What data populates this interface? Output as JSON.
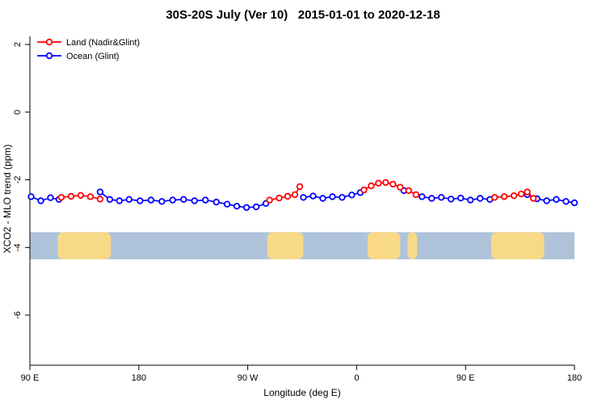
{
  "chart_data": {
    "type": "line",
    "title": "30S-20S July (Ver 10)   2015-01-01 to 2020-12-18",
    "xlabel": "Longitude (deg E)",
    "ylabel": "XCO2 - MLO trend (ppm)",
    "x_range": [
      90,
      540
    ],
    "y_visible_ticks": [
      2,
      0,
      -2,
      -4,
      -6
    ],
    "x_ticks": [
      {
        "lon": 90,
        "label": "90 E"
      },
      {
        "lon": 180,
        "label": "180"
      },
      {
        "lon": 270,
        "label": "90 W"
      },
      {
        "lon": 360,
        "label": "0"
      },
      {
        "lon": 450,
        "label": "90 E"
      },
      {
        "lon": 540,
        "label": "180"
      }
    ],
    "y_ticks": [
      {
        "v": 2,
        "label": "2"
      },
      {
        "v": 0,
        "label": "0"
      },
      {
        "v": -2,
        "label": "-2"
      },
      {
        "v": -4,
        "label": "-4"
      },
      {
        "v": -6,
        "label": "-6"
      }
    ],
    "legend_position": "top-left",
    "series": [
      {
        "name": "Land (Nadir&Glint)",
        "color": "#ff0000",
        "segments": [
          [
            [
              116,
              -2.52
            ],
            [
              124,
              -2.49
            ],
            [
              132,
              -2.46
            ],
            [
              140,
              -2.5
            ],
            [
              148,
              -2.57
            ]
          ],
          [
            [
              288,
              -2.6
            ],
            [
              296,
              -2.54
            ],
            [
              303,
              -2.49
            ],
            [
              309,
              -2.44
            ],
            [
              313,
              -2.2
            ]
          ],
          [
            [
              366,
              -2.3
            ],
            [
              372,
              -2.18
            ],
            [
              378,
              -2.1
            ],
            [
              384,
              -2.08
            ],
            [
              390,
              -2.13
            ],
            [
              396,
              -2.22
            ]
          ],
          [
            [
              403,
              -2.32
            ],
            [
              409,
              -2.44
            ]
          ],
          [
            [
              474,
              -2.52
            ],
            [
              482,
              -2.5
            ],
            [
              490,
              -2.47
            ],
            [
              496,
              -2.42
            ],
            [
              501,
              -2.36
            ],
            [
              506,
              -2.55
            ]
          ]
        ]
      },
      {
        "name": "Ocean (Glint)",
        "color": "#0000ff",
        "segments": [
          [
            [
              91,
              -2.5
            ],
            [
              99,
              -2.62
            ],
            [
              107,
              -2.53
            ],
            [
              114,
              -2.58
            ]
          ],
          [
            [
              148,
              -2.36
            ],
            [
              156,
              -2.58
            ],
            [
              164,
              -2.62
            ],
            [
              172,
              -2.58
            ],
            [
              181,
              -2.62
            ],
            [
              190,
              -2.6
            ],
            [
              199,
              -2.64
            ],
            [
              208,
              -2.6
            ],
            [
              217,
              -2.58
            ],
            [
              226,
              -2.62
            ],
            [
              235,
              -2.6
            ],
            [
              244,
              -2.66
            ],
            [
              253,
              -2.72
            ],
            [
              261,
              -2.78
            ],
            [
              269,
              -2.82
            ],
            [
              277,
              -2.8
            ],
            [
              285,
              -2.7
            ]
          ],
          [
            [
              316,
              -2.52
            ],
            [
              324,
              -2.48
            ],
            [
              332,
              -2.55
            ],
            [
              340,
              -2.5
            ],
            [
              348,
              -2.52
            ],
            [
              356,
              -2.45
            ],
            [
              363,
              -2.38
            ]
          ],
          [
            [
              399,
              -2.32
            ]
          ],
          [
            [
              414,
              -2.5
            ],
            [
              422,
              -2.55
            ],
            [
              430,
              -2.52
            ],
            [
              438,
              -2.57
            ],
            [
              446,
              -2.54
            ],
            [
              454,
              -2.6
            ],
            [
              462,
              -2.55
            ],
            [
              470,
              -2.58
            ]
          ],
          [
            [
              501,
              -2.44
            ],
            [
              509,
              -2.56
            ],
            [
              517,
              -2.62
            ],
            [
              525,
              -2.58
            ],
            [
              533,
              -2.64
            ],
            [
              540,
              -2.68
            ]
          ]
        ]
      }
    ],
    "land_ocean_band": {
      "y_top": -3.55,
      "y_bottom": -4.35,
      "ocean_color": "#aec3da",
      "land_color": "#f8d988",
      "land_segments_lon": [
        [
          113,
          157
        ],
        [
          286,
          316
        ],
        [
          369,
          396
        ],
        [
          402,
          410
        ],
        [
          471,
          515
        ]
      ]
    }
  }
}
